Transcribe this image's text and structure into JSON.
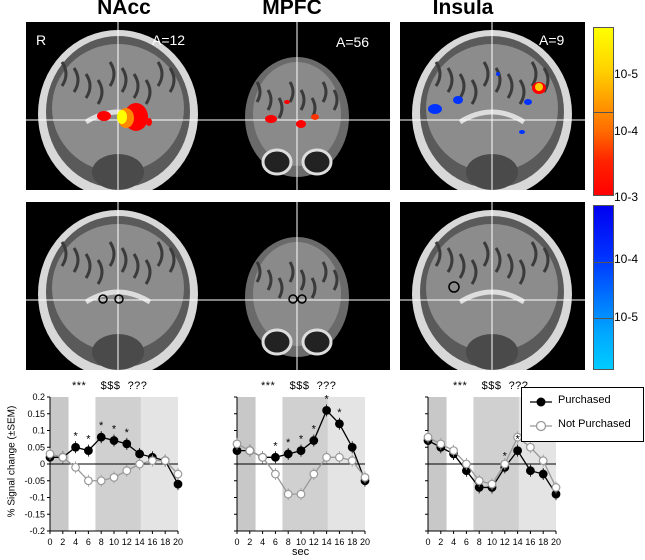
{
  "figure": {
    "column_titles": [
      "NAcc",
      "MPFC",
      "Insula"
    ],
    "panels": {
      "orientation_label": "R",
      "coordinates": [
        "A=12",
        "A=56",
        "A=9"
      ]
    },
    "colorbar": {
      "positive": {
        "labels": [
          "10-5",
          "10-4",
          "10-3"
        ],
        "colors": [
          "#ffff00",
          "#ff8800",
          "#ff0000"
        ]
      },
      "negative": {
        "labels": [
          "10-3",
          "10-4",
          "10-5"
        ],
        "colors": [
          "#0000ff",
          "#0066ff",
          "#00ccff"
        ]
      }
    },
    "significance_markers": [
      "***",
      "$$$",
      "???"
    ],
    "legend": {
      "purchased": "Purchased",
      "not_purchased": "Not Purchased"
    }
  },
  "chart_data": [
    {
      "type": "line",
      "title": "NAcc",
      "xlabel": "",
      "ylabel": "% Signal change (±SEM)",
      "x": [
        0,
        2,
        4,
        6,
        8,
        10,
        12,
        14,
        16,
        18,
        20
      ],
      "xticks": [
        "0",
        "2",
        "4",
        "6",
        "8",
        "10",
        "12",
        "14",
        "16",
        "18",
        "20"
      ],
      "yticks": [
        "0.2",
        "0.15",
        "0.1",
        "0.05",
        "0",
        "-0.05",
        "-0.1",
        "-0.15",
        "-0.2"
      ],
      "ylim": [
        -0.2,
        0.2
      ],
      "star_labels": [
        "*",
        "*",
        "*",
        "*",
        "*"
      ],
      "series": [
        {
          "name": "Purchased",
          "values": [
            0.02,
            0.02,
            0.05,
            0.04,
            0.08,
            0.07,
            0.06,
            0.03,
            0.02,
            0.01,
            -0.06
          ]
        },
        {
          "name": "Not Purchased",
          "values": [
            0.03,
            0.02,
            -0.01,
            -0.05,
            -0.05,
            -0.04,
            -0.02,
            0.0,
            0.01,
            0.01,
            -0.03
          ]
        }
      ]
    },
    {
      "type": "line",
      "title": "MPFC",
      "xlabel": "sec",
      "ylabel": "",
      "x": [
        0,
        2,
        4,
        6,
        8,
        10,
        12,
        14,
        16,
        18,
        20
      ],
      "xticks": [
        "0",
        "2",
        "4",
        "6",
        "8",
        "10",
        "12",
        "14",
        "16",
        "18",
        "20"
      ],
      "yticks": [
        "0.2",
        "0.15",
        "0.1",
        "0.05",
        "0",
        "-0.05",
        "-0.1",
        "-0.15",
        "-0.2"
      ],
      "ylim": [
        -0.2,
        0.2
      ],
      "star_labels": [
        "*",
        "*",
        "*",
        "*",
        "*",
        "*"
      ],
      "series": [
        {
          "name": "Purchased",
          "values": [
            0.04,
            0.04,
            0.02,
            0.02,
            0.03,
            0.04,
            0.07,
            0.16,
            0.12,
            0.05,
            -0.05
          ]
        },
        {
          "name": "Not Purchased",
          "values": [
            0.06,
            0.04,
            0.02,
            -0.03,
            -0.09,
            -0.09,
            -0.03,
            0.02,
            0.02,
            0.01,
            -0.04
          ]
        }
      ]
    },
    {
      "type": "line",
      "title": "Insula",
      "xlabel": "",
      "ylabel": "",
      "x": [
        0,
        2,
        4,
        6,
        8,
        10,
        12,
        14,
        16,
        18,
        20
      ],
      "xticks": [
        "0",
        "2",
        "4",
        "6",
        "8",
        "10",
        "12",
        "14",
        "16",
        "18",
        "20"
      ],
      "yticks": [
        "0.2",
        "0.15",
        "0.1",
        "0.05",
        "0",
        "-0.05",
        "-0.1",
        "-0.15",
        "-0.2"
      ],
      "ylim": [
        -0.2,
        0.2
      ],
      "star_labels": [
        "*",
        "*"
      ],
      "series": [
        {
          "name": "Purchased",
          "values": [
            0.07,
            0.05,
            0.03,
            -0.02,
            -0.07,
            -0.07,
            -0.01,
            0.04,
            -0.02,
            -0.03,
            -0.09
          ]
        },
        {
          "name": "Not Purchased",
          "values": [
            0.08,
            0.06,
            0.04,
            0.0,
            -0.05,
            -0.06,
            0.0,
            0.08,
            0.05,
            0.01,
            -0.07
          ]
        }
      ]
    }
  ]
}
